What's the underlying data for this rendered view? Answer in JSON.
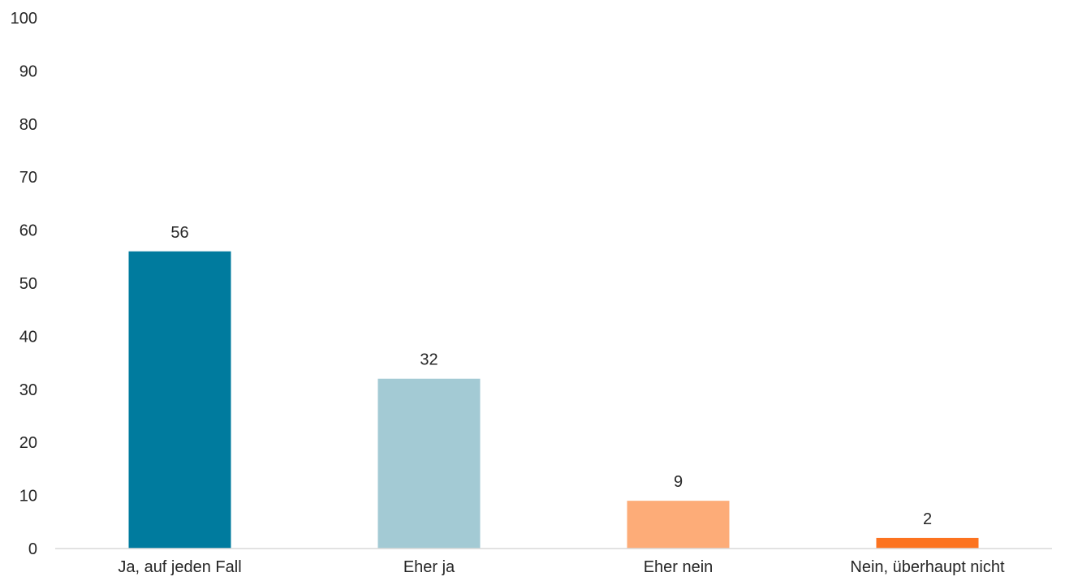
{
  "chart_data": {
    "type": "bar",
    "title": "",
    "xlabel": "",
    "ylabel": "",
    "categories": [
      "Ja, auf jeden Fall",
      "Eher ja",
      "Eher nein",
      "Nein, überhaupt nicht"
    ],
    "values": [
      56,
      32,
      9,
      2
    ],
    "data_labels": [
      "56",
      "32",
      "9",
      "2"
    ],
    "bar_colors": [
      "#007b9e",
      "#a3cad4",
      "#fdac78",
      "#fc7320"
    ],
    "ylim": [
      0,
      100
    ],
    "yticks": [
      0,
      10,
      20,
      30,
      40,
      50,
      60,
      70,
      80,
      90,
      100
    ],
    "ytick_labels": [
      "0",
      "10",
      "20",
      "30",
      "40",
      "50",
      "60",
      "70",
      "80",
      "90",
      "100"
    ],
    "grid": false,
    "legend": "none",
    "axis_color": "#d9d9d9",
    "text_color": "#262626"
  }
}
